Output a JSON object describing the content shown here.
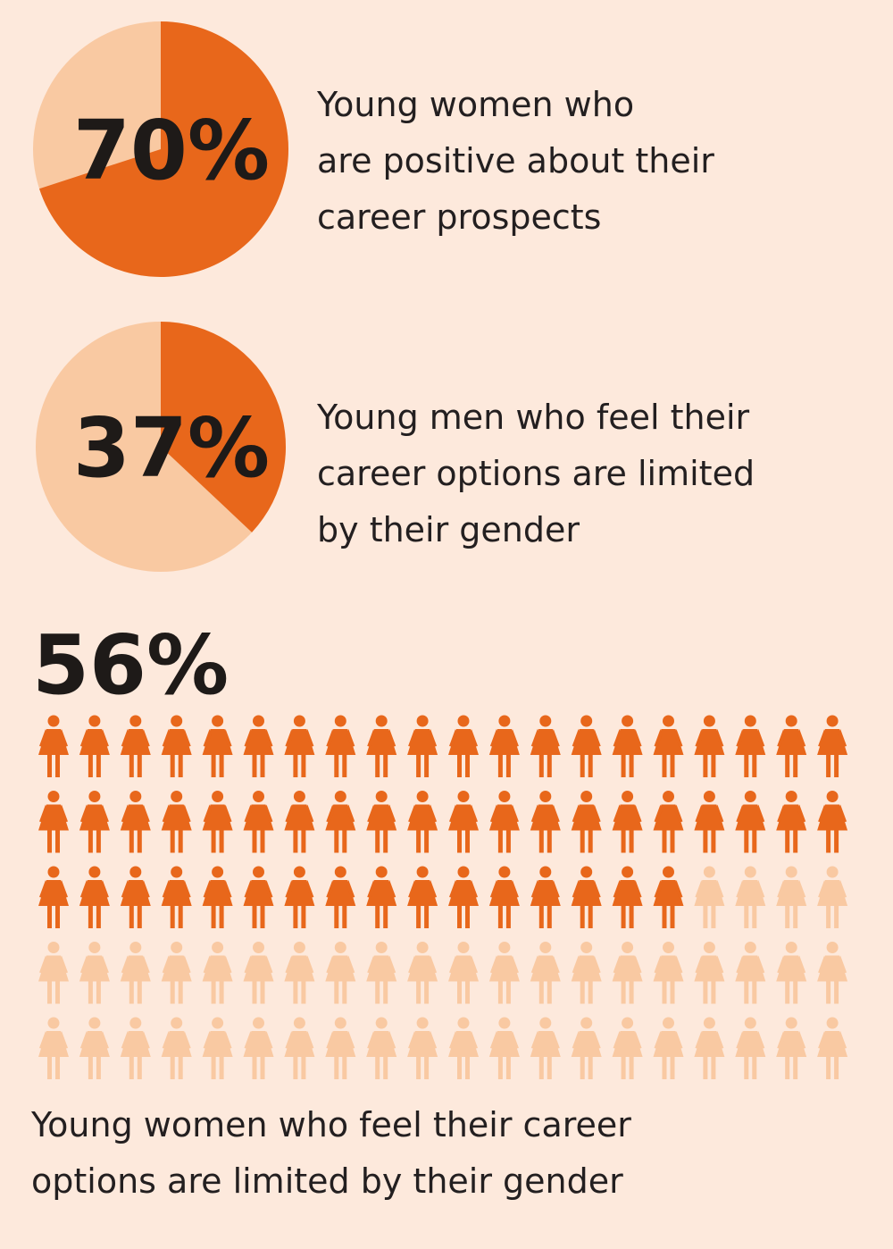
{
  "chart_data": [
    {
      "type": "pie",
      "values": [
        70
      ],
      "value_labels": [
        "70%"
      ],
      "color": "#e8671b",
      "rest_color": "#f9c9a2",
      "text_lines": [
        "Young women who",
        "are positive about their",
        "career prospects"
      ]
    },
    {
      "type": "pie",
      "values": [
        37
      ],
      "value_labels": [
        "37%"
      ],
      "color": "#e8671b",
      "rest_color": "#f9c9a2",
      "text_lines": [
        "Young men who feel their",
        "career options are limited",
        "by their gender"
      ]
    },
    {
      "type": "pictogram",
      "values": [
        56
      ],
      "value_labels": [
        "56%"
      ],
      "color": "#e8671b",
      "rest_color": "#f9c9a2",
      "text_lines": [
        "Young women who feel their career",
        "options are limited by their gender"
      ]
    }
  ]
}
